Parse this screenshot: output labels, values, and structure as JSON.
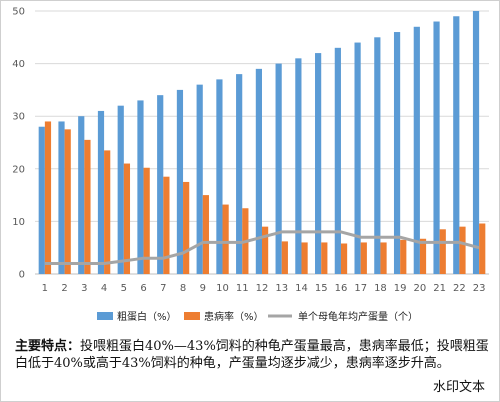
{
  "chart_data": {
    "type": "bar",
    "title": "",
    "xlabel": "",
    "ylabel": "",
    "ylim": [
      0,
      50
    ],
    "yticks": [
      0,
      10,
      20,
      30,
      40,
      50
    ],
    "grid": "horizontal",
    "legend_position": "bottom",
    "categories": [
      "1",
      "2",
      "3",
      "4",
      "5",
      "6",
      "7",
      "8",
      "9",
      "10",
      "11",
      "12",
      "13",
      "14",
      "15",
      "16",
      "17",
      "18",
      "19",
      "20",
      "21",
      "22",
      "23"
    ],
    "series": [
      {
        "name": "粗蛋白（%）",
        "type": "bar",
        "color": "#5b9bd5",
        "values": [
          28,
          29,
          30,
          31,
          32,
          33,
          34,
          35,
          36,
          37,
          38,
          39,
          40,
          41,
          42,
          43,
          44,
          45,
          46,
          47,
          48,
          49,
          50
        ]
      },
      {
        "name": "患病率（%）",
        "type": "bar",
        "color": "#ed7d31",
        "values": [
          29,
          27.5,
          25.5,
          23.5,
          21,
          20.2,
          18.5,
          17.5,
          15,
          13.2,
          12.5,
          9,
          6.2,
          6,
          6,
          5.8,
          6,
          6,
          6.5,
          6.7,
          8.5,
          9,
          9.6
        ]
      },
      {
        "name": "单个母龟年均产蛋量（个）",
        "type": "line",
        "color": "#a5a5a5",
        "values": [
          2,
          2,
          2,
          2,
          2.5,
          3,
          3,
          4,
          6,
          6,
          6,
          7,
          8,
          8,
          8,
          8,
          7,
          7,
          7,
          6,
          6,
          6,
          5
        ]
      }
    ]
  },
  "summary": {
    "lead": "主要特点：",
    "text": "投喂粗蛋白40%—43%饲料的种龟产蛋量最高，患病率最低；投喂粗蛋白低于40%或高于43%饲料的种龟，产蛋量均逐步减少，患病率逐步升高。"
  },
  "watermark": "水印文本"
}
